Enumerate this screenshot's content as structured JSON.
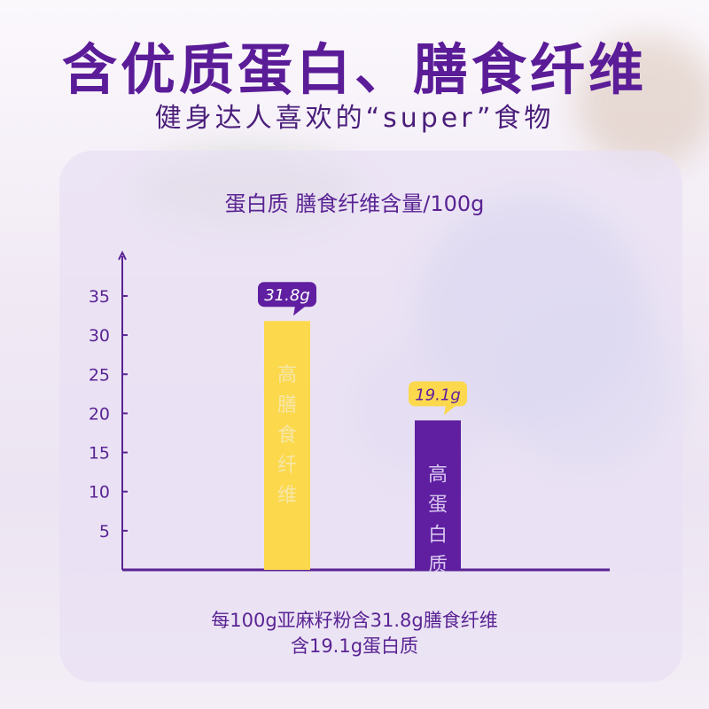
{
  "header": {
    "title": "含优质蛋白、膳食纤维",
    "subtitle": "健身达人喜欢的“super”食物"
  },
  "chart_data": {
    "type": "bar",
    "title": "蛋白质 膳食纤维含量/100g",
    "xlabel": "",
    "ylabel": "",
    "ylim": [
      0,
      37
    ],
    "yticks": [
      "5",
      "10",
      "15",
      "20",
      "25",
      "30",
      "35"
    ],
    "grid": false,
    "bars": [
      {
        "value": 31.8,
        "value_label": "31.8g",
        "inner_label": "高膳食纤维",
        "color": "#fcd84c",
        "text_color": "#f6e7a7",
        "tag_color": "#5f1fa0",
        "tag_text_color": "#ffffff"
      },
      {
        "value": 19.1,
        "value_label": "19.1g",
        "inner_label": "高蛋白质",
        "color": "#5f1fa0",
        "text_color": "#d8c6ef",
        "tag_color": "#fcd84c",
        "tag_text_color": "#5f1fa0"
      }
    ]
  },
  "footnote": {
    "line1": "每100g亚麻籽粉含31.8g膳食纤维",
    "line2": "含19.1g蛋白质"
  },
  "colors": {
    "accent_purple": "#5f1fa0",
    "accent_yellow": "#fcd84c",
    "axis": "#5a2393"
  }
}
